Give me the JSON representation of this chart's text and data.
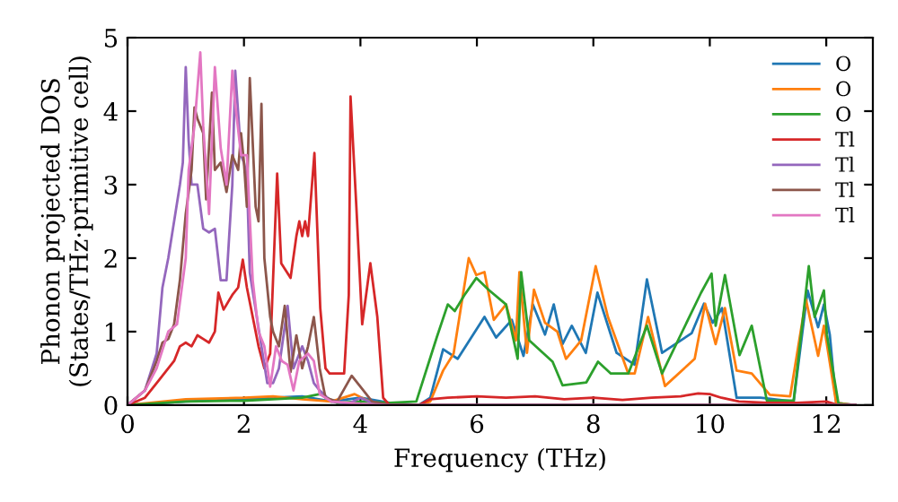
{
  "chart_data": {
    "type": "line",
    "xlabel": "Frequency (THz)",
    "ylabel": "Phonon projected DOS\n(States/THz·primitive cell)",
    "xlim": [
      0,
      12.8
    ],
    "ylim": [
      0,
      5
    ],
    "xticks": [
      0,
      2,
      4,
      6,
      8,
      10,
      12
    ],
    "yticks": [
      0,
      1,
      2,
      3,
      4,
      5
    ],
    "grid": false,
    "legend": "top right",
    "marker": "none",
    "line_style": "solid",
    "series": [
      {
        "name": "O",
        "color": "#1f77b4",
        "x": [
          0,
          1,
          2,
          2.5,
          3,
          3.5,
          4,
          4.5,
          5,
          5.2,
          5.42,
          5.67,
          6.13,
          6.33,
          6.6,
          6.8,
          6.96,
          7.17,
          7.32,
          7.47,
          7.63,
          7.87,
          8.07,
          8.4,
          8.71,
          8.92,
          9.18,
          9.69,
          9.9,
          10.05,
          10.21,
          10.46,
          10.87,
          11.44,
          11.68,
          11.86,
          11.96,
          12.06,
          12.17,
          12.5
        ],
        "values": [
          0,
          0.05,
          0.08,
          0.1,
          0.12,
          0.05,
          0.1,
          0.03,
          0,
          0.1,
          0.76,
          0.63,
          1.2,
          0.92,
          1.16,
          0.67,
          1.37,
          0.96,
          1.37,
          0.83,
          1.08,
          0.71,
          1.53,
          0.71,
          0.55,
          1.71,
          0.71,
          0.98,
          1.38,
          1.12,
          1.32,
          0.1,
          0.1,
          0.05,
          1.56,
          1.06,
          1.37,
          0.96,
          0.03,
          0
        ]
      },
      {
        "name": "O",
        "color": "#ff7f0e",
        "x": [
          0,
          1,
          2,
          2.5,
          3,
          3.5,
          3.9,
          4.2,
          4.5,
          5,
          5.2,
          5.42,
          5.6,
          5.86,
          5.99,
          6.13,
          6.29,
          6.5,
          6.67,
          6.73,
          6.86,
          6.98,
          7.17,
          7.38,
          7.53,
          7.79,
          8.04,
          8.25,
          8.6,
          8.71,
          8.94,
          9.23,
          9.74,
          9.92,
          10.1,
          10.26,
          10.46,
          10.72,
          11.03,
          11.38,
          11.65,
          11.86,
          11.96,
          12.17,
          12.5
        ],
        "values": [
          0,
          0.08,
          0.1,
          0.12,
          0.08,
          0.05,
          0.15,
          0.03,
          0,
          0,
          0.05,
          0.47,
          0.7,
          2.0,
          1.77,
          1.81,
          1.16,
          1.37,
          0.88,
          1.81,
          0.71,
          1.57,
          1.12,
          1.0,
          0.63,
          0.88,
          1.89,
          1.2,
          0.43,
          0.43,
          1.2,
          0.26,
          0.63,
          1.38,
          0.83,
          1.32,
          0.47,
          0.43,
          0.14,
          0.12,
          1.44,
          0.67,
          1.08,
          0.03,
          0
        ]
      },
      {
        "name": "O",
        "color": "#2ca02c",
        "x": [
          0,
          1,
          2,
          2.5,
          3,
          3.3,
          3.6,
          4,
          4.5,
          4.96,
          5.31,
          5.5,
          5.62,
          5.78,
          5.99,
          6.2,
          6.5,
          6.7,
          6.76,
          6.9,
          7.3,
          7.47,
          7.88,
          8.08,
          8.3,
          8.6,
          8.92,
          9.18,
          9.85,
          10.03,
          10.1,
          10.26,
          10.51,
          10.72,
          10.98,
          11.44,
          11.7,
          11.8,
          11.96,
          12.01,
          12.21,
          12.5
        ],
        "values": [
          0,
          0.05,
          0.06,
          0.08,
          0.1,
          0.15,
          0.03,
          0.05,
          0.03,
          0.05,
          0.92,
          1.37,
          1.28,
          1.49,
          1.73,
          1.57,
          1.37,
          0.63,
          1.81,
          0.88,
          0.59,
          0.27,
          0.31,
          0.59,
          0.43,
          0.43,
          1.08,
          0.43,
          1.53,
          1.79,
          1.08,
          1.77,
          0.68,
          1.08,
          0.06,
          0.06,
          1.89,
          1.2,
          1.56,
          0.96,
          0.02,
          0
        ]
      },
      {
        "name": "Tl",
        "color": "#d62728",
        "x": [
          0,
          0.3,
          0.5,
          0.7,
          0.8,
          0.9,
          1.0,
          1.1,
          1.2,
          1.3,
          1.4,
          1.5,
          1.56,
          1.65,
          1.8,
          1.9,
          1.98,
          2.05,
          2.15,
          2.25,
          2.35,
          2.45,
          2.57,
          2.64,
          2.8,
          2.9,
          2.95,
          3.0,
          3.05,
          3.1,
          3.21,
          3.31,
          3.4,
          3.47,
          3.72,
          3.8,
          3.83,
          3.93,
          4.03,
          4.17,
          4.29,
          4.39,
          4.5,
          5.0,
          5.2,
          5.5,
          6,
          6.5,
          7,
          7.5,
          8,
          8.5,
          9,
          9.5,
          9.8,
          10,
          10.2,
          10.5,
          11,
          11.5,
          12,
          12.2,
          12.5
        ],
        "values": [
          0,
          0.1,
          0.3,
          0.5,
          0.6,
          0.8,
          0.85,
          0.8,
          0.95,
          0.9,
          0.85,
          1.0,
          1.53,
          1.3,
          1.5,
          1.6,
          1.98,
          1.6,
          1.2,
          0.8,
          0.5,
          0.7,
          3.15,
          1.93,
          1.73,
          2.3,
          2.5,
          2.3,
          2.5,
          2.3,
          3.43,
          1.32,
          0.5,
          0.43,
          0.43,
          1.5,
          4.2,
          2.7,
          1.1,
          1.93,
          1.2,
          0.1,
          0,
          0,
          0.08,
          0.1,
          0.12,
          0.1,
          0.12,
          0.08,
          0.1,
          0.07,
          0.1,
          0.12,
          0.16,
          0.15,
          0.1,
          0.05,
          0.03,
          0.03,
          0.05,
          0,
          0
        ]
      },
      {
        "name": "Tl",
        "color": "#9467bd",
        "x": [
          0,
          0.3,
          0.5,
          0.6,
          0.7,
          0.8,
          0.9,
          0.95,
          1.0,
          1.05,
          1.1,
          1.2,
          1.3,
          1.4,
          1.5,
          1.6,
          1.7,
          1.8,
          1.85,
          1.95,
          2.0,
          2.05,
          2.1,
          2.2,
          2.3,
          2.4,
          2.5,
          2.6,
          2.75,
          2.85,
          3.0,
          3.1,
          3.2,
          3.3,
          3.5,
          3.8,
          4.0,
          4.2,
          4.5,
          12.5
        ],
        "values": [
          0,
          0.2,
          0.7,
          1.6,
          2.0,
          2.5,
          3.0,
          3.3,
          4.6,
          3.6,
          3.0,
          3.0,
          2.4,
          2.35,
          2.4,
          1.7,
          1.7,
          3.0,
          4.55,
          3.4,
          3.3,
          3.1,
          1.8,
          1.3,
          0.8,
          0.3,
          0.3,
          0.5,
          1.35,
          0.5,
          0.8,
          0.6,
          0.3,
          0.2,
          0.05,
          0.02,
          0.1,
          0.03,
          0,
          0
        ]
      },
      {
        "name": "Tl",
        "color": "#8c564b",
        "x": [
          0,
          0.3,
          0.5,
          0.6,
          0.7,
          0.8,
          0.9,
          1.0,
          1.1,
          1.15,
          1.2,
          1.3,
          1.35,
          1.45,
          1.5,
          1.6,
          1.7,
          1.8,
          1.9,
          1.95,
          2.0,
          2.05,
          2.1,
          2.2,
          2.25,
          2.3,
          2.35,
          2.45,
          2.5,
          2.6,
          2.7,
          2.8,
          2.9,
          3.0,
          3.1,
          3.2,
          3.3,
          3.4,
          3.6,
          3.85,
          4.0,
          4.2,
          4.5,
          12.5
        ],
        "values": [
          0,
          0.2,
          0.6,
          0.85,
          0.9,
          1.1,
          1.7,
          2.6,
          3.2,
          4.05,
          3.9,
          3.7,
          2.8,
          4.25,
          3.2,
          3.3,
          2.9,
          3.4,
          3.2,
          3.7,
          3.3,
          2.7,
          4.45,
          2.7,
          2.5,
          4.1,
          2.0,
          1.2,
          1.0,
          0.8,
          1.35,
          0.45,
          0.95,
          0.5,
          0.8,
          1.2,
          0.5,
          0.1,
          0.05,
          0.4,
          0.25,
          0.05,
          0,
          0
        ]
      },
      {
        "name": "Tl",
        "color": "#e377c2",
        "x": [
          0,
          0.3,
          0.5,
          0.7,
          0.85,
          1.0,
          1.05,
          1.15,
          1.25,
          1.3,
          1.4,
          1.5,
          1.6,
          1.7,
          1.8,
          1.85,
          1.95,
          2.05,
          2.15,
          2.25,
          2.35,
          2.45,
          2.55,
          2.65,
          2.75,
          2.85,
          2.95,
          3.1,
          3.2,
          3.3,
          3.5,
          4.0,
          4.5,
          12.5
        ],
        "values": [
          0,
          0.2,
          0.5,
          1.0,
          1.1,
          2.0,
          3.2,
          3.8,
          4.8,
          3.8,
          2.6,
          4.6,
          3.5,
          3.0,
          4.55,
          4.1,
          3.4,
          3.4,
          1.7,
          1.0,
          0.8,
          0.25,
          0.8,
          0.6,
          0.55,
          0.2,
          0.6,
          0.7,
          0.6,
          0.15,
          0.05,
          0.02,
          0,
          0
        ]
      }
    ]
  }
}
